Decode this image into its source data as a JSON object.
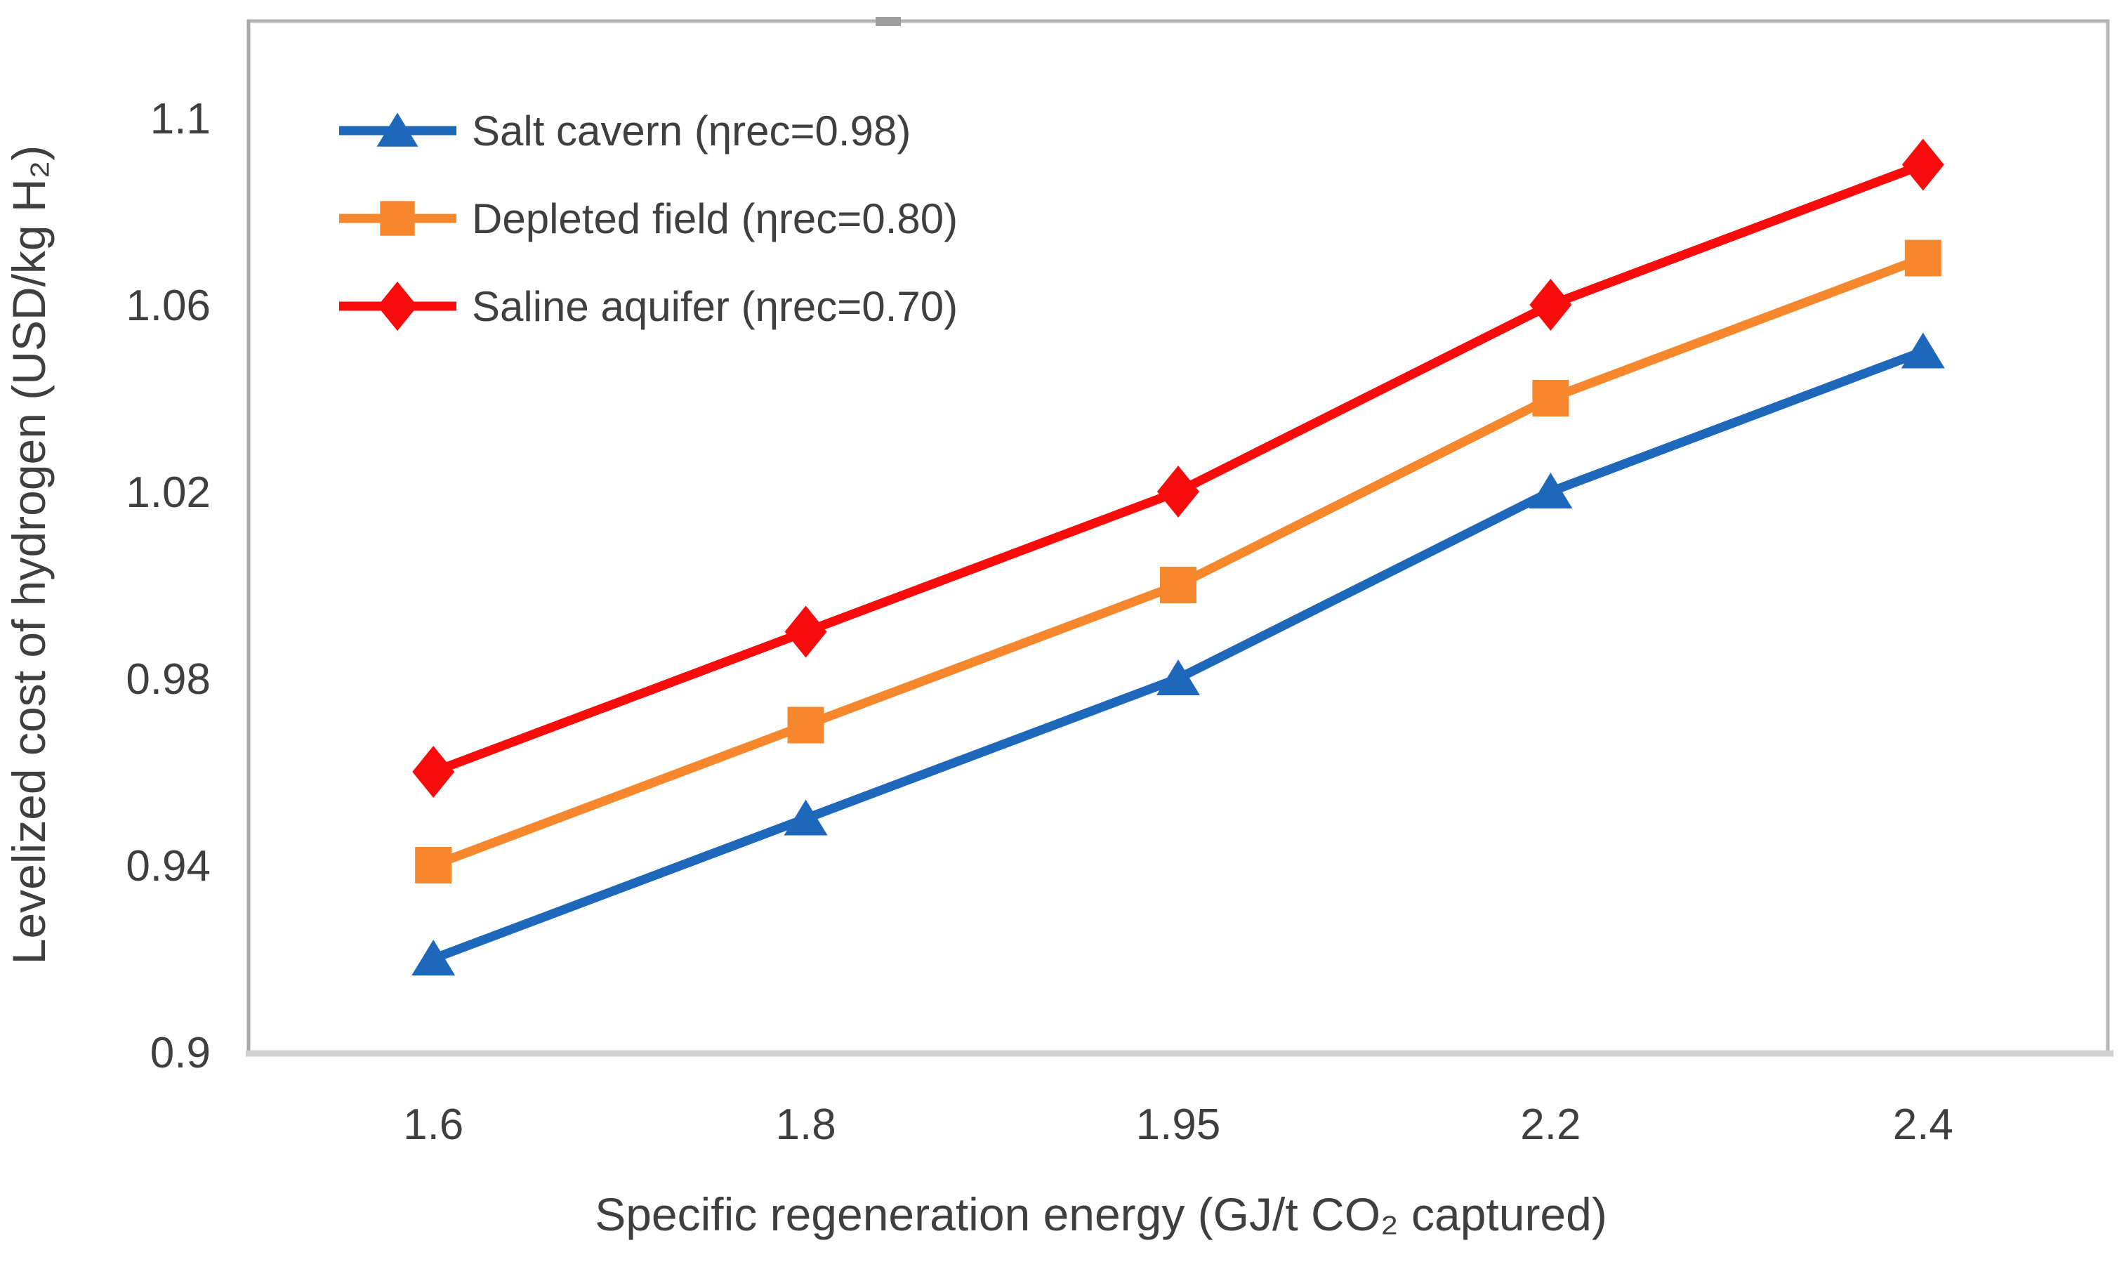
{
  "figure": {
    "y_axis_title": "Levelized cost of hydrogen (USD/kg H₂)",
    "x_axis_title": "Specific regeneration energy (GJ/t CO₂ captured)"
  },
  "chart_data": {
    "type": "line",
    "title": "",
    "xlabel": "Specific regeneration energy (GJ/t CO₂ captured)",
    "ylabel": "Levelized cost of hydrogen (USD/kg H₂)",
    "categories": [
      "1.6",
      "1.8",
      "1.95",
      "2.2",
      "2.4"
    ],
    "x_values": [
      1.6,
      1.8,
      1.95,
      2.2,
      2.4
    ],
    "series": [
      {
        "name": "Salt cavern (ηrec=0.98)",
        "marker": "triangle",
        "color": "#1E68BC",
        "values": [
          0.92,
          0.95,
          0.98,
          1.02,
          1.05
        ]
      },
      {
        "name": "Depleted field (ηrec=0.80)",
        "marker": "square",
        "color": "#F6872D",
        "values": [
          0.94,
          0.97,
          1.0,
          1.04,
          1.07
        ]
      },
      {
        "name": "Saline aquifer (ηrec=0.70)",
        "marker": "diamond",
        "color": "#FA0B0B",
        "values": [
          0.96,
          0.99,
          1.02,
          1.06,
          1.09
        ]
      }
    ],
    "yticks": [
      0.9,
      0.94,
      0.98,
      1.02,
      1.06,
      1.1
    ],
    "ytick_labels": [
      "0.9",
      "0.94",
      "0.98",
      "1.02",
      "1.06",
      "1.1"
    ],
    "ylim": [
      0.9,
      1.121
    ],
    "grid": false,
    "legend_position": "top-left-inside",
    "axis_text_color": "#3f3f3f",
    "frame_color": "#b4b4b4",
    "bottom_axis_color": "#cfcfcf",
    "left_axis_color": "#a8a8a8",
    "handle_color": "#9e9e9e"
  }
}
